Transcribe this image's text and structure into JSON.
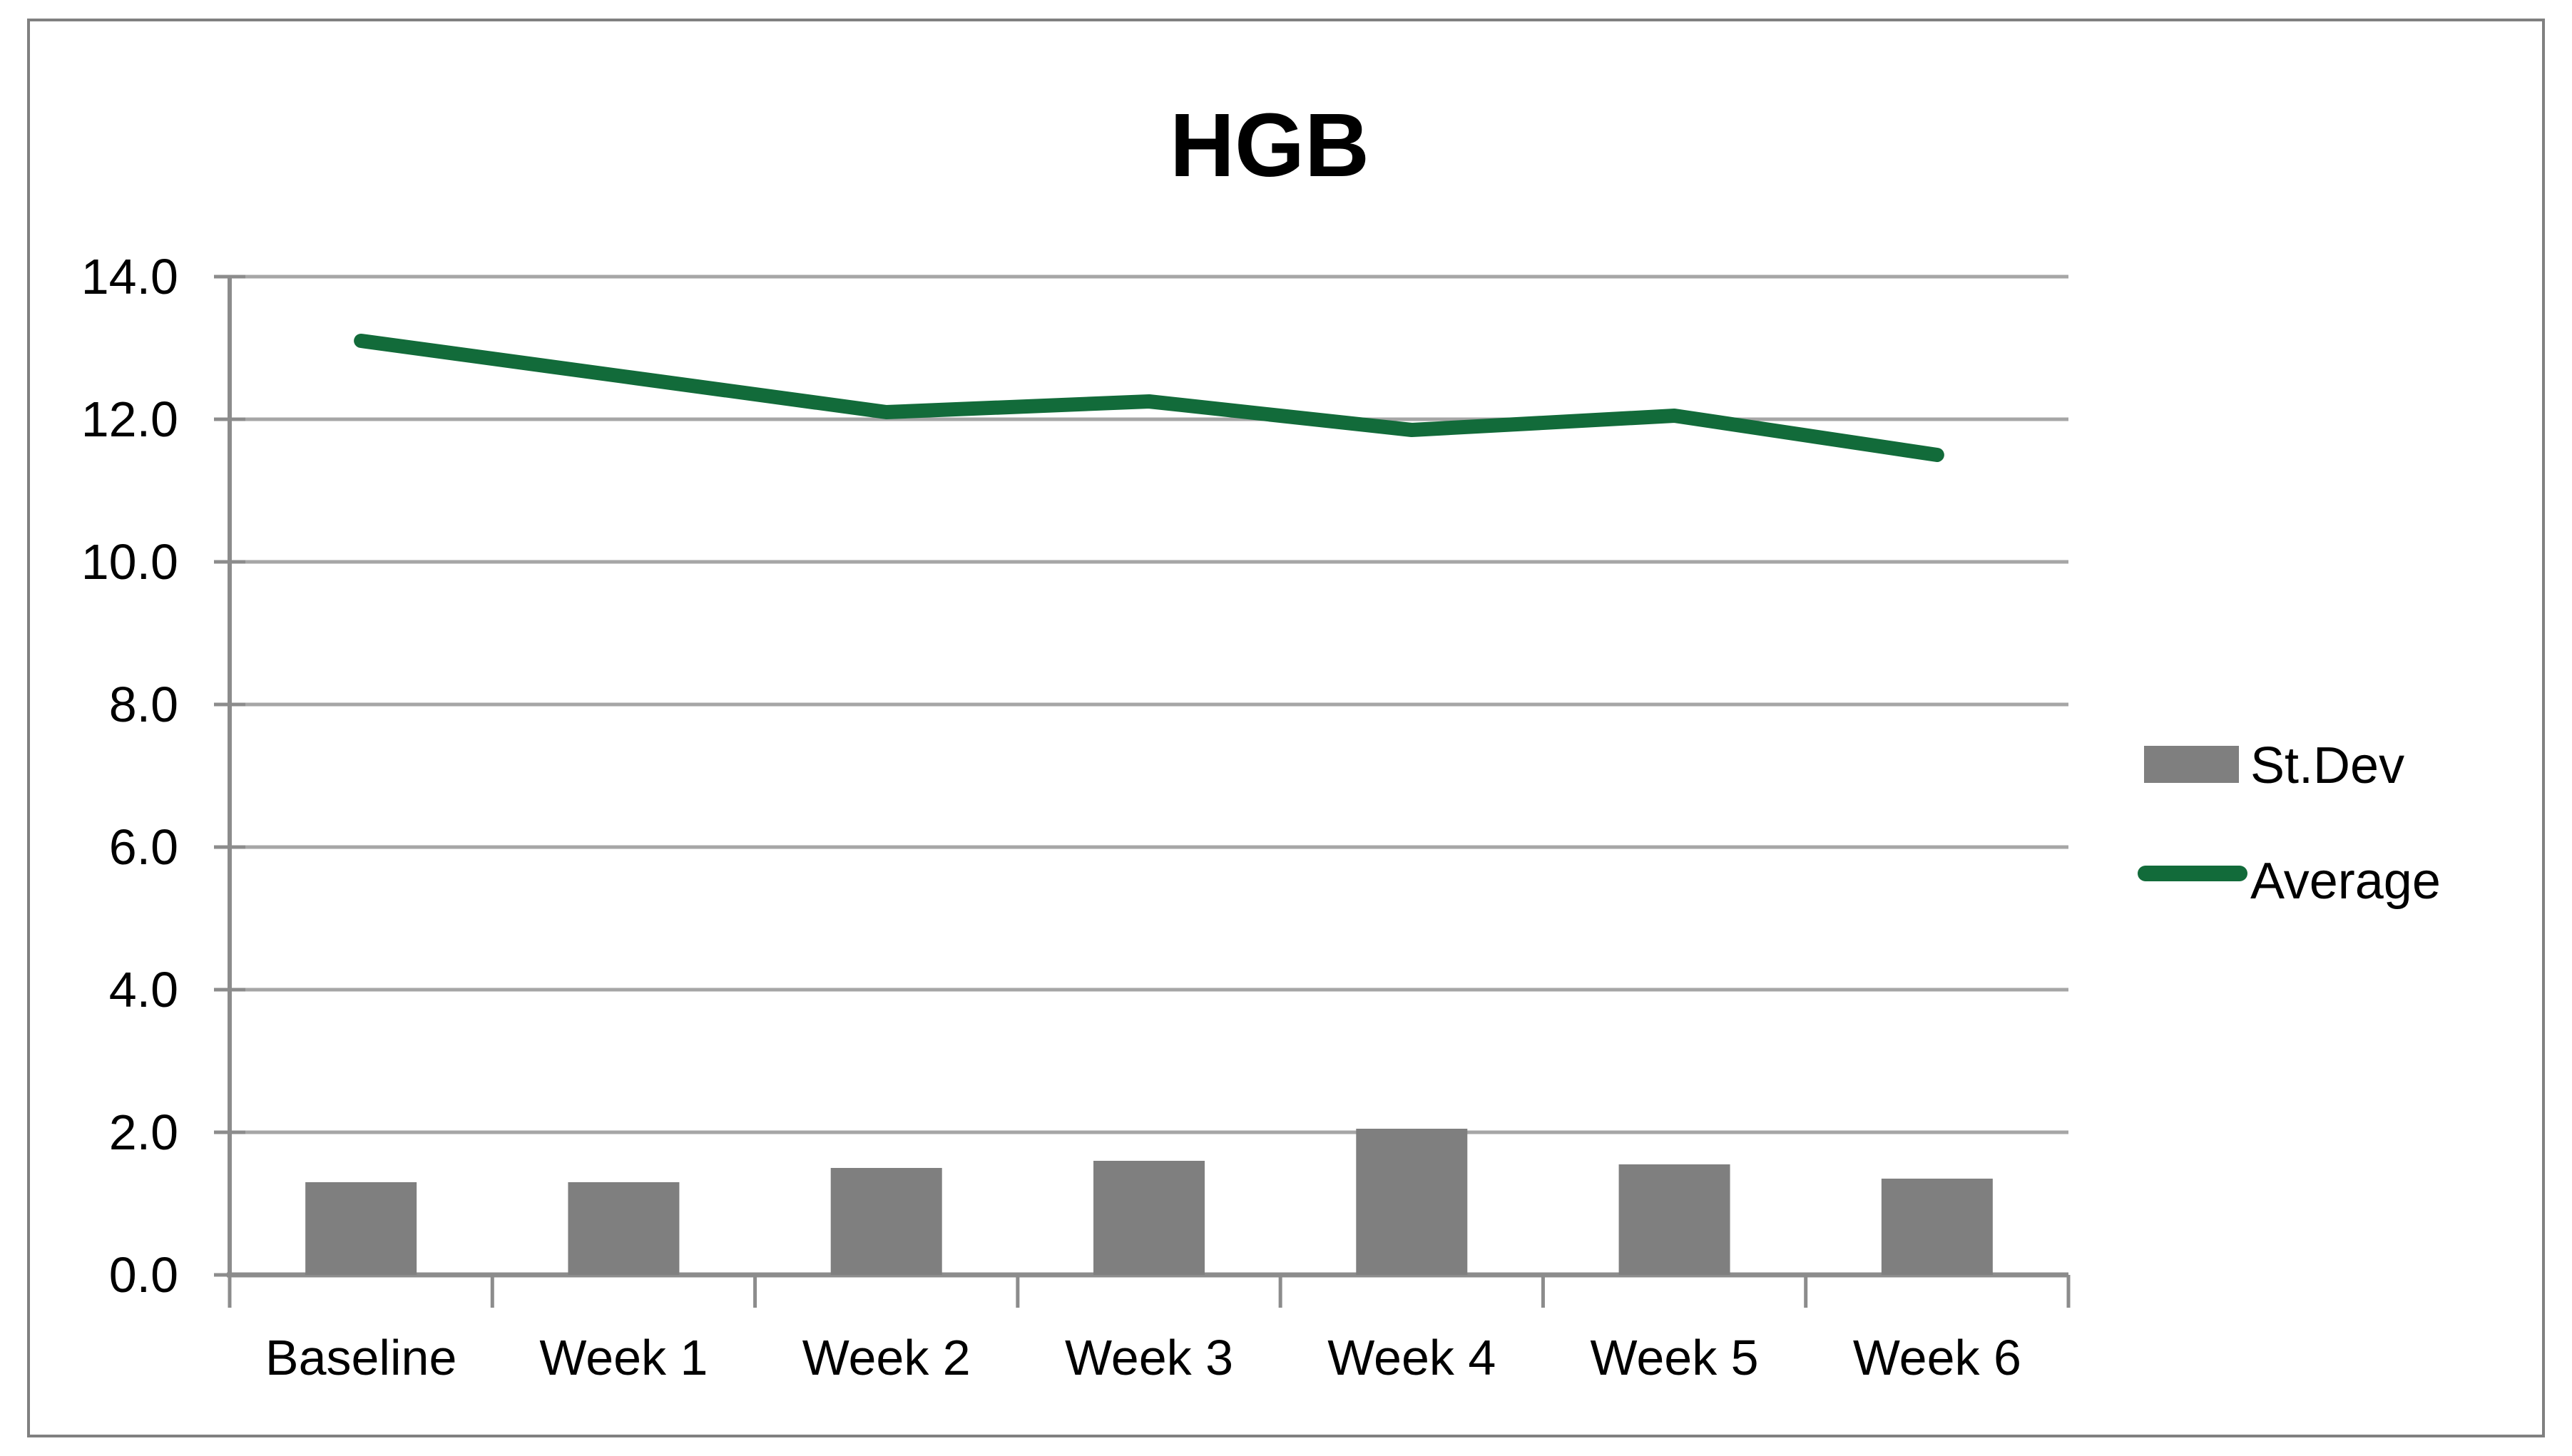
{
  "window": {
    "background": "#ffffff",
    "border_color": "#808080"
  },
  "chart_data": {
    "type": "bar",
    "subtype": "combo-bar-line",
    "title": "HGB",
    "categories": [
      "Baseline",
      "Week 1",
      "Week 2",
      "Week 3",
      "Week 4",
      "Week 5",
      "Week 6"
    ],
    "series": [
      {
        "name": "St.Dev",
        "type": "bar",
        "color": "#7F7F7F",
        "values": [
          1.3,
          1.3,
          1.5,
          1.6,
          2.05,
          1.55,
          1.35
        ]
      },
      {
        "name": "Average",
        "type": "line",
        "color": "#126B3A",
        "values": [
          13.1,
          12.6,
          12.1,
          12.25,
          11.85,
          12.05,
          11.5
        ]
      }
    ],
    "xlabel": "",
    "ylabel": "",
    "ylim": [
      0,
      14
    ],
    "ytick_step": 2,
    "ytick_labels": [
      "0.0",
      "2.0",
      "4.0",
      "6.0",
      "8.0",
      "10.0",
      "12.0",
      "14.0"
    ],
    "grid": true,
    "legend_position": "right",
    "axis_color": "#8C8C8C",
    "gridline_color": "#A6A6A6"
  }
}
